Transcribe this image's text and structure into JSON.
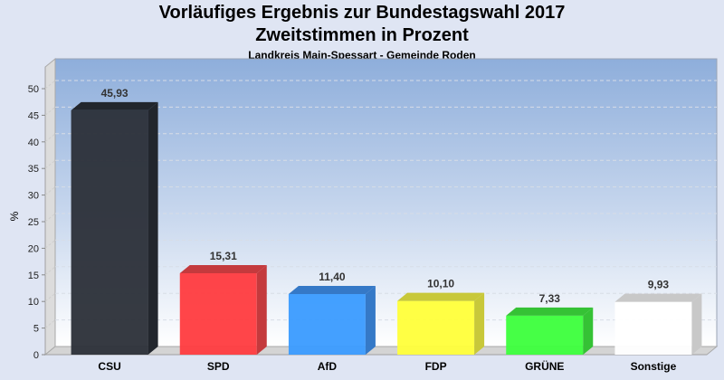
{
  "chart_data": {
    "type": "bar",
    "title": "Vorläufiges Ergebnis zur Bundestagswahl 2017",
    "subtitle": "Zweitstimmen in Prozent",
    "subsubtitle": "Landkreis Main-Spessart - Gemeinde Roden",
    "xlabel": "",
    "ylabel": "%",
    "ylim": [
      0,
      50
    ],
    "yticks": [
      0,
      5,
      10,
      15,
      20,
      25,
      30,
      35,
      40,
      45,
      50
    ],
    "grid": true,
    "legend": "none",
    "categories": [
      "CSU",
      "SPD",
      "AfD",
      "FDP",
      "GRÜNE",
      "Sonstige"
    ],
    "values": [
      45.93,
      15.31,
      11.4,
      10.1,
      7.33,
      9.93
    ],
    "value_labels": [
      "45,93",
      "15,31",
      "11,40",
      "10,10",
      "7,33",
      "9,93"
    ],
    "colors": [
      "#2b2f38",
      "#ff3b3f",
      "#3a9bff",
      "#ffff3a",
      "#3cff3c",
      "#ffffff"
    ],
    "side_colors": [
      "#22262d",
      "#c43a3d",
      "#3579c7",
      "#c8c83a",
      "#35c235",
      "#c8c8c8"
    ]
  }
}
